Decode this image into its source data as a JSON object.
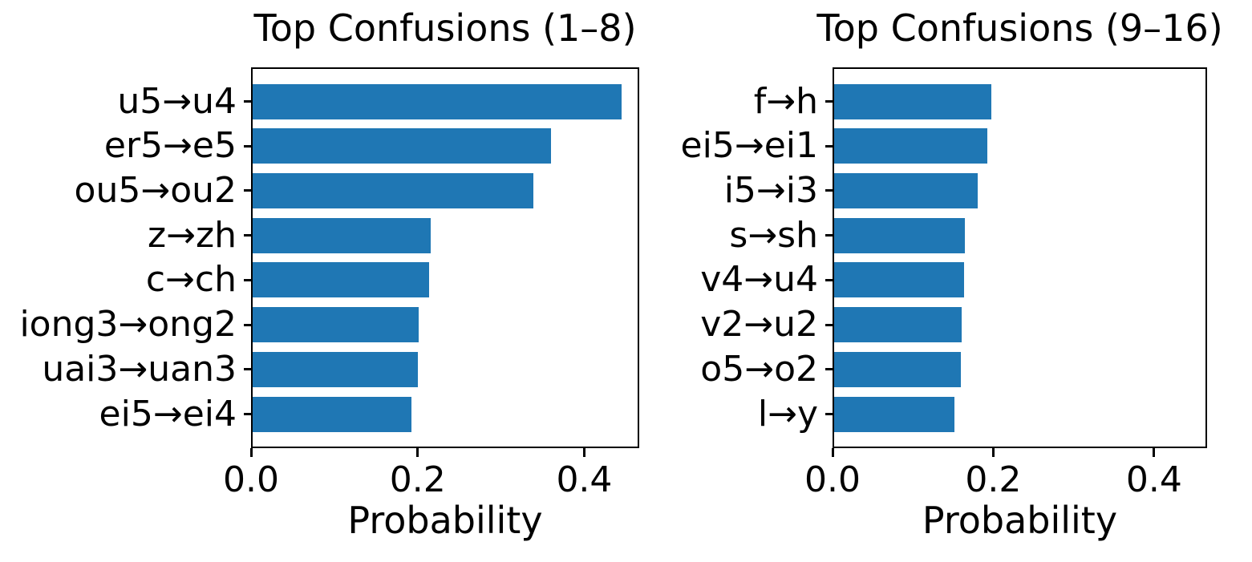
{
  "figure": {
    "background": "#ffffff",
    "text_color": "#000000"
  },
  "chart_data": [
    {
      "type": "bar",
      "orientation": "horizontal",
      "title": "Top Confusions (1–8)",
      "xlabel": "Probability",
      "ylabel": "",
      "categories": [
        "u5→u4",
        "er5→e5",
        "ou5→ou2",
        "z→zh",
        "c→ch",
        "iong3→ong2",
        "uai3→uan3",
        "ei5→ei4"
      ],
      "values": [
        0.443,
        0.358,
        0.337,
        0.214,
        0.212,
        0.199,
        0.198,
        0.191
      ],
      "xlim": [
        0,
        0.466
      ],
      "xticks": [
        0,
        0.2,
        0.4
      ],
      "xtick_labels": [
        "0.0",
        "0.2",
        "0.4"
      ],
      "bar_color": "#1f77b4",
      "grid": false,
      "legend": null
    },
    {
      "type": "bar",
      "orientation": "horizontal",
      "title": "Top Confusions (9–16)",
      "xlabel": "Probability",
      "ylabel": "",
      "categories": [
        "f→h",
        "ei5→ei1",
        "i5→i3",
        "s→sh",
        "v4→u4",
        "v2→u2",
        "o5→o2",
        "l→y"
      ],
      "values": [
        0.196,
        0.191,
        0.179,
        0.163,
        0.162,
        0.159,
        0.158,
        0.15
      ],
      "xlim": [
        0,
        0.466
      ],
      "xticks": [
        0,
        0.2,
        0.4
      ],
      "xtick_labels": [
        "0.0",
        "0.2",
        "0.4"
      ],
      "bar_color": "#1f77b4",
      "grid": false,
      "legend": null
    }
  ]
}
